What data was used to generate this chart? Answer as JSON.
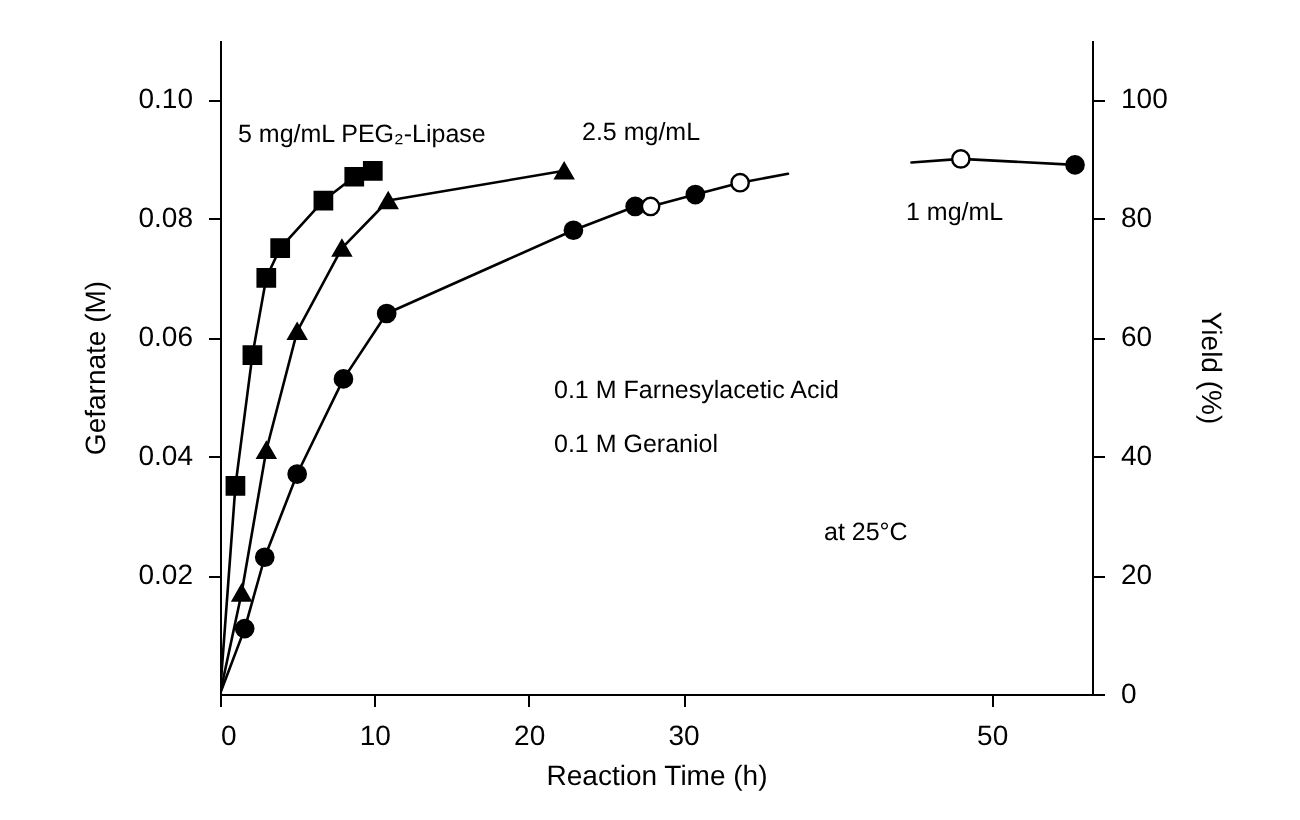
{
  "chart_data": {
    "type": "line",
    "xlabel": "Reaction Time (h)",
    "ylabel": "Gefarnate (M)",
    "y2label": "Yield (%)",
    "xlim": [
      0,
      56.5
    ],
    "xticks": [
      0,
      10,
      20,
      30,
      50
    ],
    "ylim": [
      0,
      0.11
    ],
    "yticks": [
      0.02,
      0.04,
      0.06,
      0.08,
      {
        "value": 0.1,
        "label": "0.10"
      }
    ],
    "y2lim": [
      0,
      110
    ],
    "y2ticks": [
      0,
      20,
      40,
      60,
      80,
      100
    ],
    "annotations": [
      "0.1 M Farnesylacetic Acid",
      "0.1 M Geraniol",
      "at 25°C"
    ],
    "series": [
      {
        "type": "line",
        "color": "#000000",
        "x": [
          0,
          1.0,
          2.1,
          3.0,
          3.9,
          6.7,
          8.7,
          9.9
        ],
        "values": [
          0,
          0.035,
          0.057,
          0.07,
          0.075,
          0.083,
          0.087,
          0.088
        ]
      },
      {
        "type": "line",
        "color": "#000000",
        "x": [
          0,
          1.4,
          3.0,
          5.0,
          7.9,
          10.9,
          22.3
        ],
        "values": [
          0,
          0.017,
          0.041,
          0.061,
          0.075,
          0.083,
          0.088
        ]
      },
      {
        "type": "line",
        "color": "#000000",
        "x": [
          0,
          1.6,
          2.9,
          5.0,
          8.0,
          10.8,
          22.9,
          26.9,
          27.9,
          30.8,
          33.7,
          36.8
        ],
        "values": [
          0,
          0.011,
          0.023,
          0.037,
          0.053,
          0.064,
          0.078,
          0.082,
          0.082,
          0.084,
          0.086,
          0.0875
        ]
      },
      {
        "name": "5 mg/mL PEG₂-Lipase",
        "type": "scatter",
        "marker": "square",
        "color": "#000000",
        "x": [
          1.0,
          2.1,
          3.0,
          3.9,
          6.7,
          8.7,
          9.9
        ],
        "values": [
          0.035,
          0.057,
          0.07,
          0.075,
          0.083,
          0.087,
          0.088
        ]
      },
      {
        "name": "2.5 mg/mL",
        "type": "scatter",
        "marker": "triangle",
        "color": "#000000",
        "x": [
          1.4,
          3.0,
          5.0,
          7.9,
          10.9,
          22.3
        ],
        "values": [
          0.017,
          0.041,
          0.061,
          0.075,
          0.083,
          0.088
        ]
      },
      {
        "type": "scatter",
        "marker": "circle",
        "color": "#000000",
        "x": [
          1.6,
          2.9,
          5.0,
          8.0,
          10.8,
          22.9,
          26.9,
          30.8
        ],
        "values": [
          0.011,
          0.023,
          0.037,
          0.053,
          0.064,
          0.078,
          0.082,
          0.084
        ]
      },
      {
        "type": "scatter",
        "marker": "circle",
        "color": "#ffffff",
        "x": [
          27.9,
          33.7
        ],
        "values": [
          0.082,
          0.086
        ]
      },
      {
        "type": "line",
        "axis": "y2",
        "color": "#000000",
        "x": [
          44.8,
          48.0,
          55.4
        ],
        "values": [
          89.4,
          90,
          89
        ]
      },
      {
        "type": "scatter",
        "axis": "y2",
        "marker": "circle",
        "color": "#ffffff",
        "x": [
          48.0
        ],
        "values": [
          90
        ]
      },
      {
        "name": "1 mg/mL",
        "type": "scatter",
        "axis": "y2",
        "marker": "circle",
        "color": "#000000",
        "x": [
          55.4
        ],
        "values": [
          89
        ]
      }
    ]
  }
}
